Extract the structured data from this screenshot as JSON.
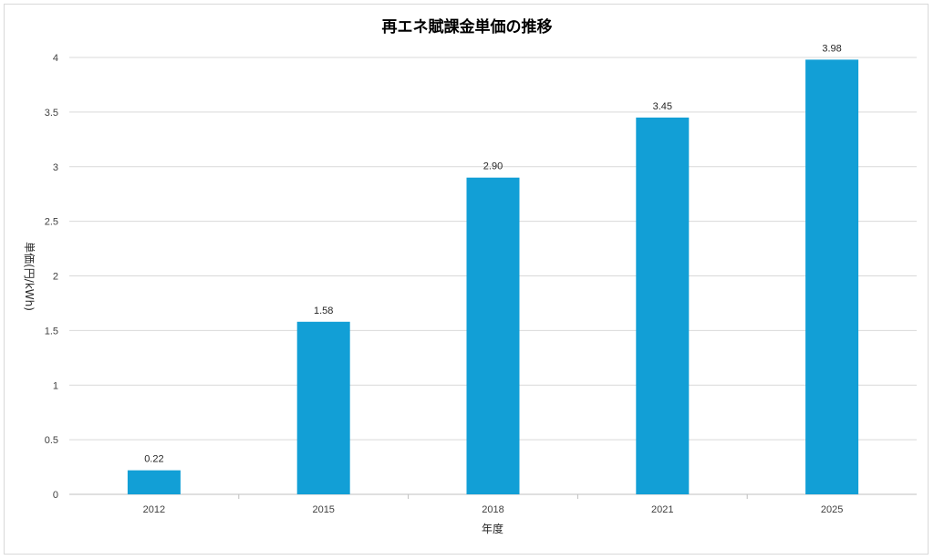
{
  "chart_data": {
    "type": "bar",
    "title": "再エネ賦課金単価の推移",
    "xlabel": "年度",
    "ylabel": "単価(円/kWh)",
    "categories": [
      "2012",
      "2015",
      "2018",
      "2021",
      "2025"
    ],
    "values": [
      0.22,
      1.58,
      2.9,
      3.45,
      3.98
    ],
    "data_labels": [
      "0.22",
      "1.58",
      "2.90",
      "3.45",
      "3.98"
    ],
    "ylim": [
      0,
      4
    ],
    "yticks": [
      0,
      0.5,
      1,
      1.5,
      2,
      2.5,
      3,
      3.5,
      4
    ],
    "ytick_labels": [
      "0",
      "0.5",
      "1",
      "1.5",
      "2",
      "2.5",
      "3",
      "3.5",
      "4"
    ],
    "bar_color": "#129fd6",
    "grid": true,
    "legend": "none"
  }
}
